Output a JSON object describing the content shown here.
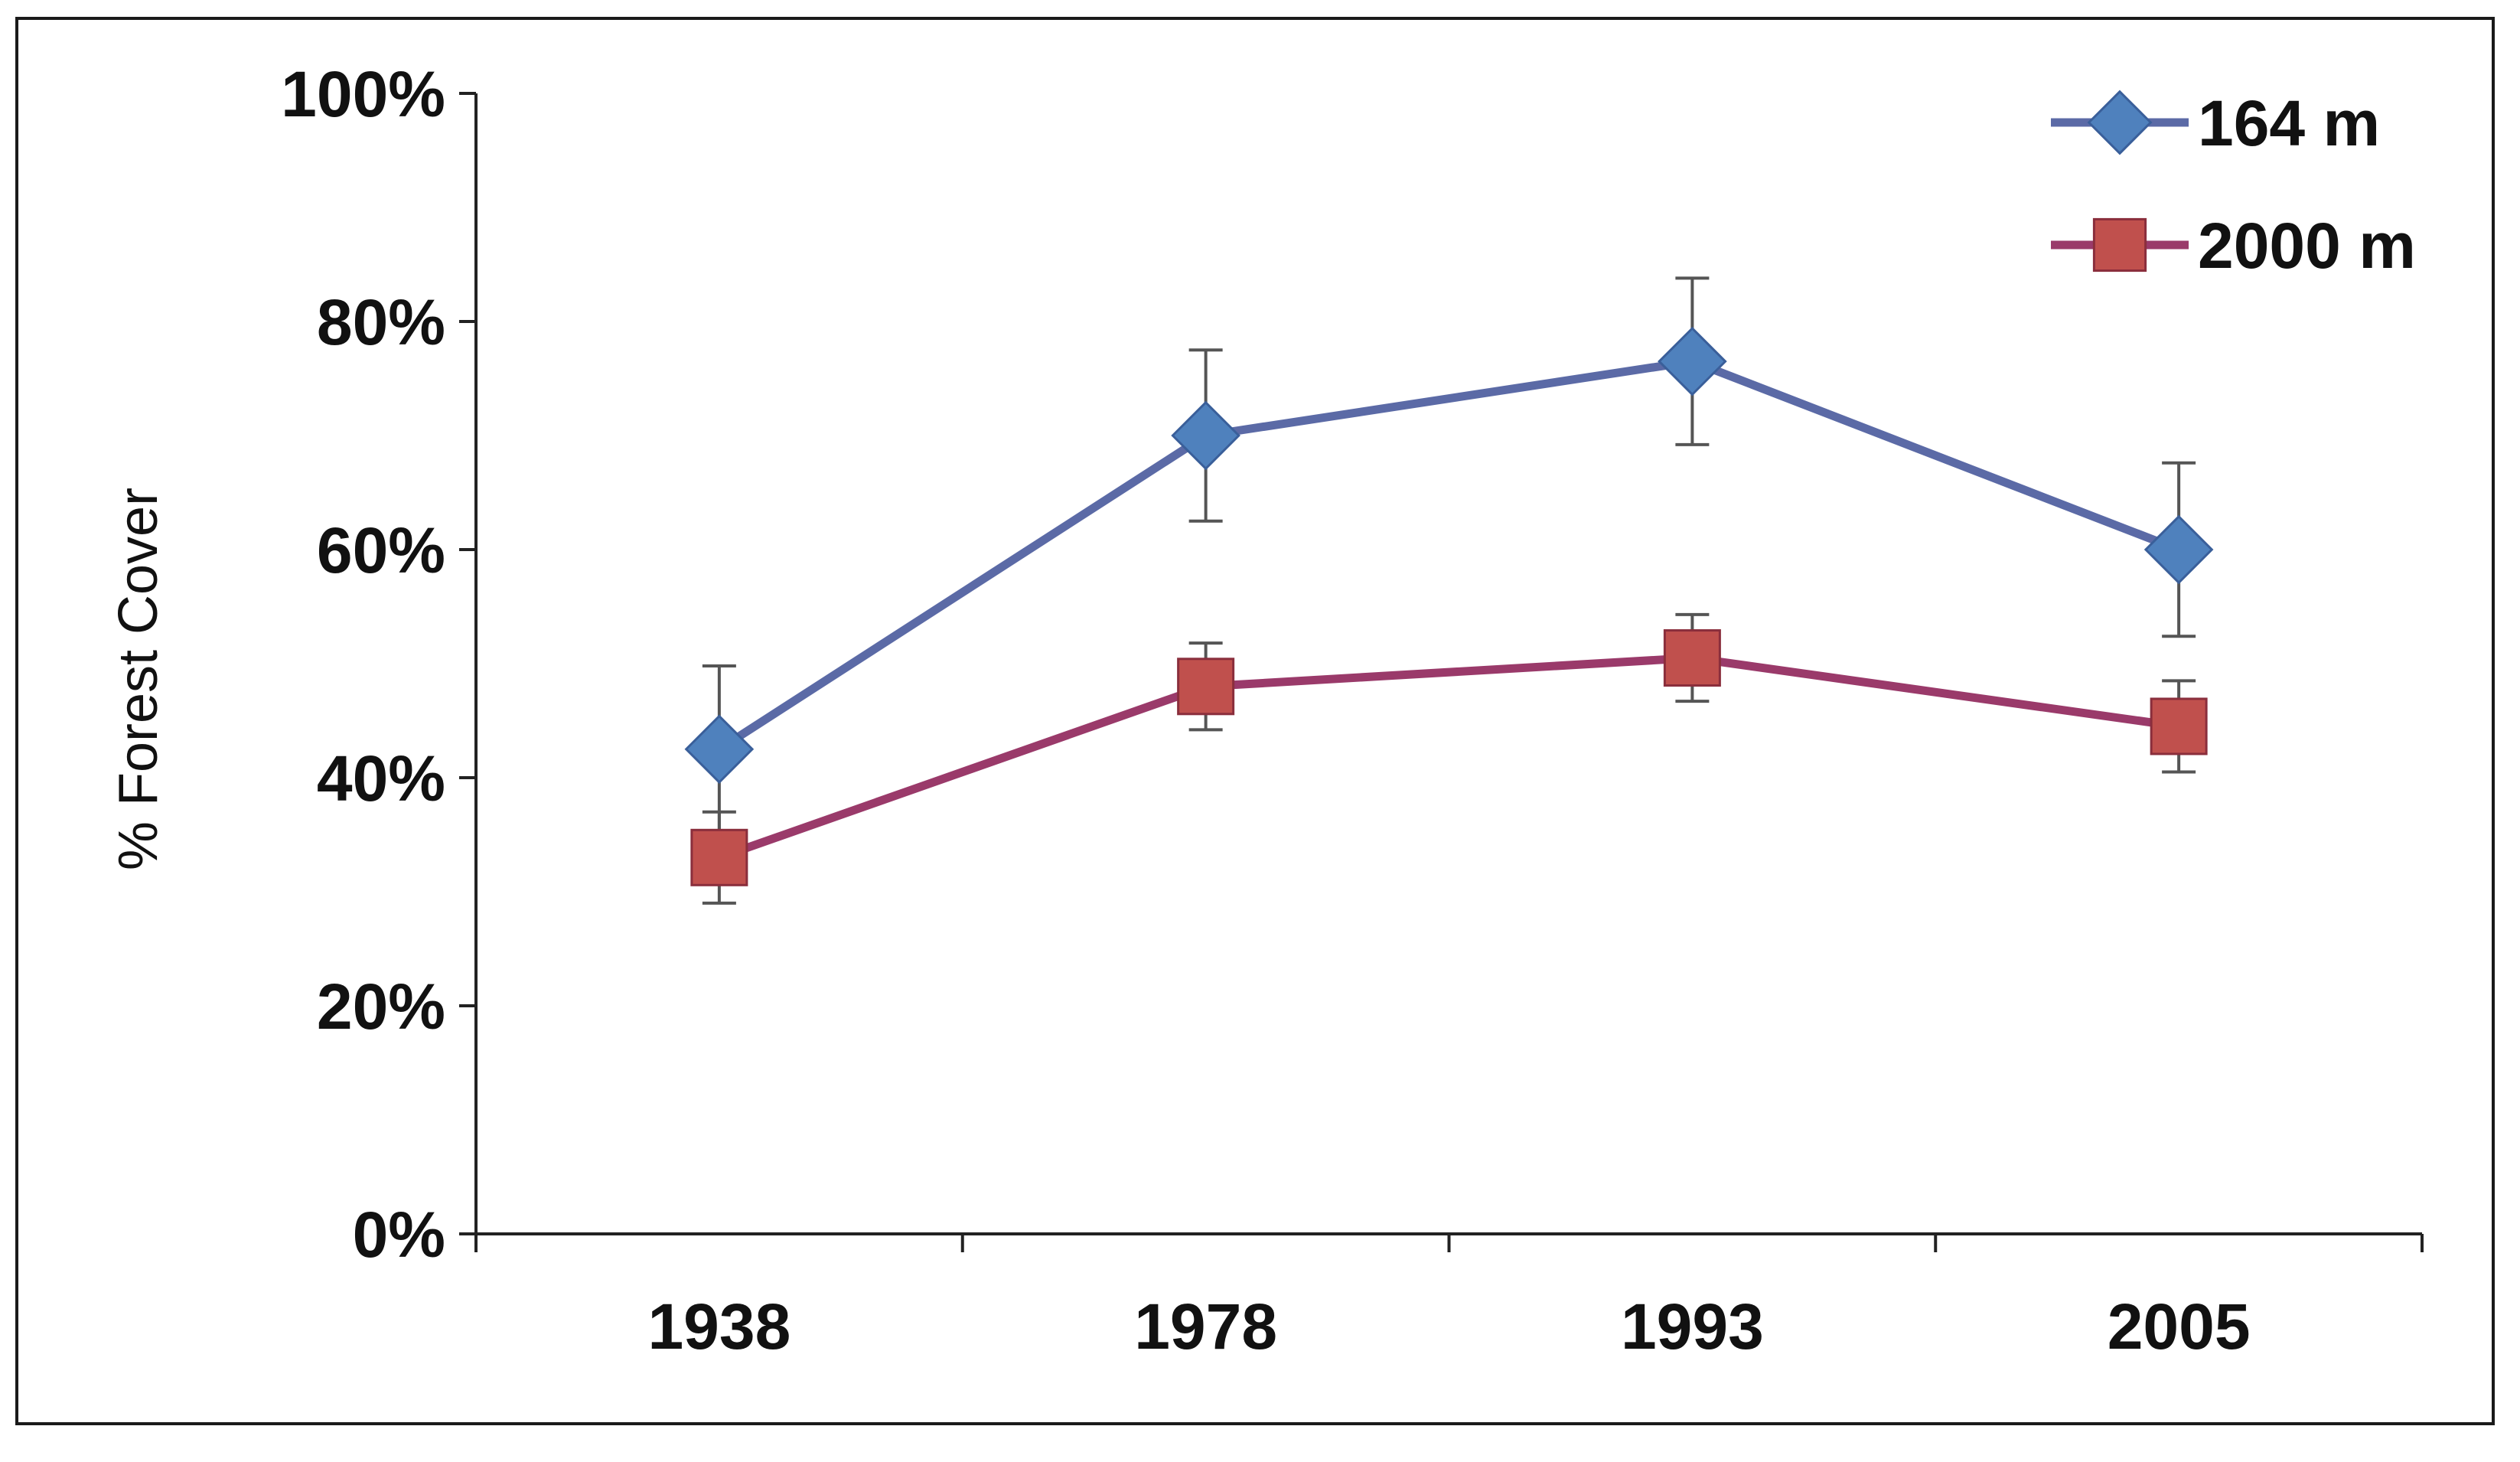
{
  "chart_data": {
    "type": "line",
    "title": "",
    "xlabel": "",
    "ylabel": "% Forest Cover",
    "categories": [
      "1938",
      "1978",
      "1993",
      "2005"
    ],
    "ylim": [
      0,
      100
    ],
    "yticks": [
      0,
      20,
      40,
      60,
      80,
      100
    ],
    "ytick_labels": [
      "0%",
      "20%",
      "40%",
      "60%",
      "80%",
      "100%"
    ],
    "grid": false,
    "legend_position": "top-right",
    "series": [
      {
        "name": "164 m",
        "color": "#5b6aa6",
        "marker_color": "#4f81bd",
        "marker": "diamond",
        "values": [
          42.5,
          70,
          76.5,
          60
        ],
        "error": [
          7.3,
          7.5,
          7.3,
          7.6
        ]
      },
      {
        "name": "2000 m",
        "color": "#9a3a6a",
        "marker_color": "#c0504d",
        "marker": "square",
        "values": [
          33,
          48,
          50.5,
          44.5
        ],
        "error": [
          4,
          3.8,
          3.8,
          4
        ]
      }
    ]
  }
}
